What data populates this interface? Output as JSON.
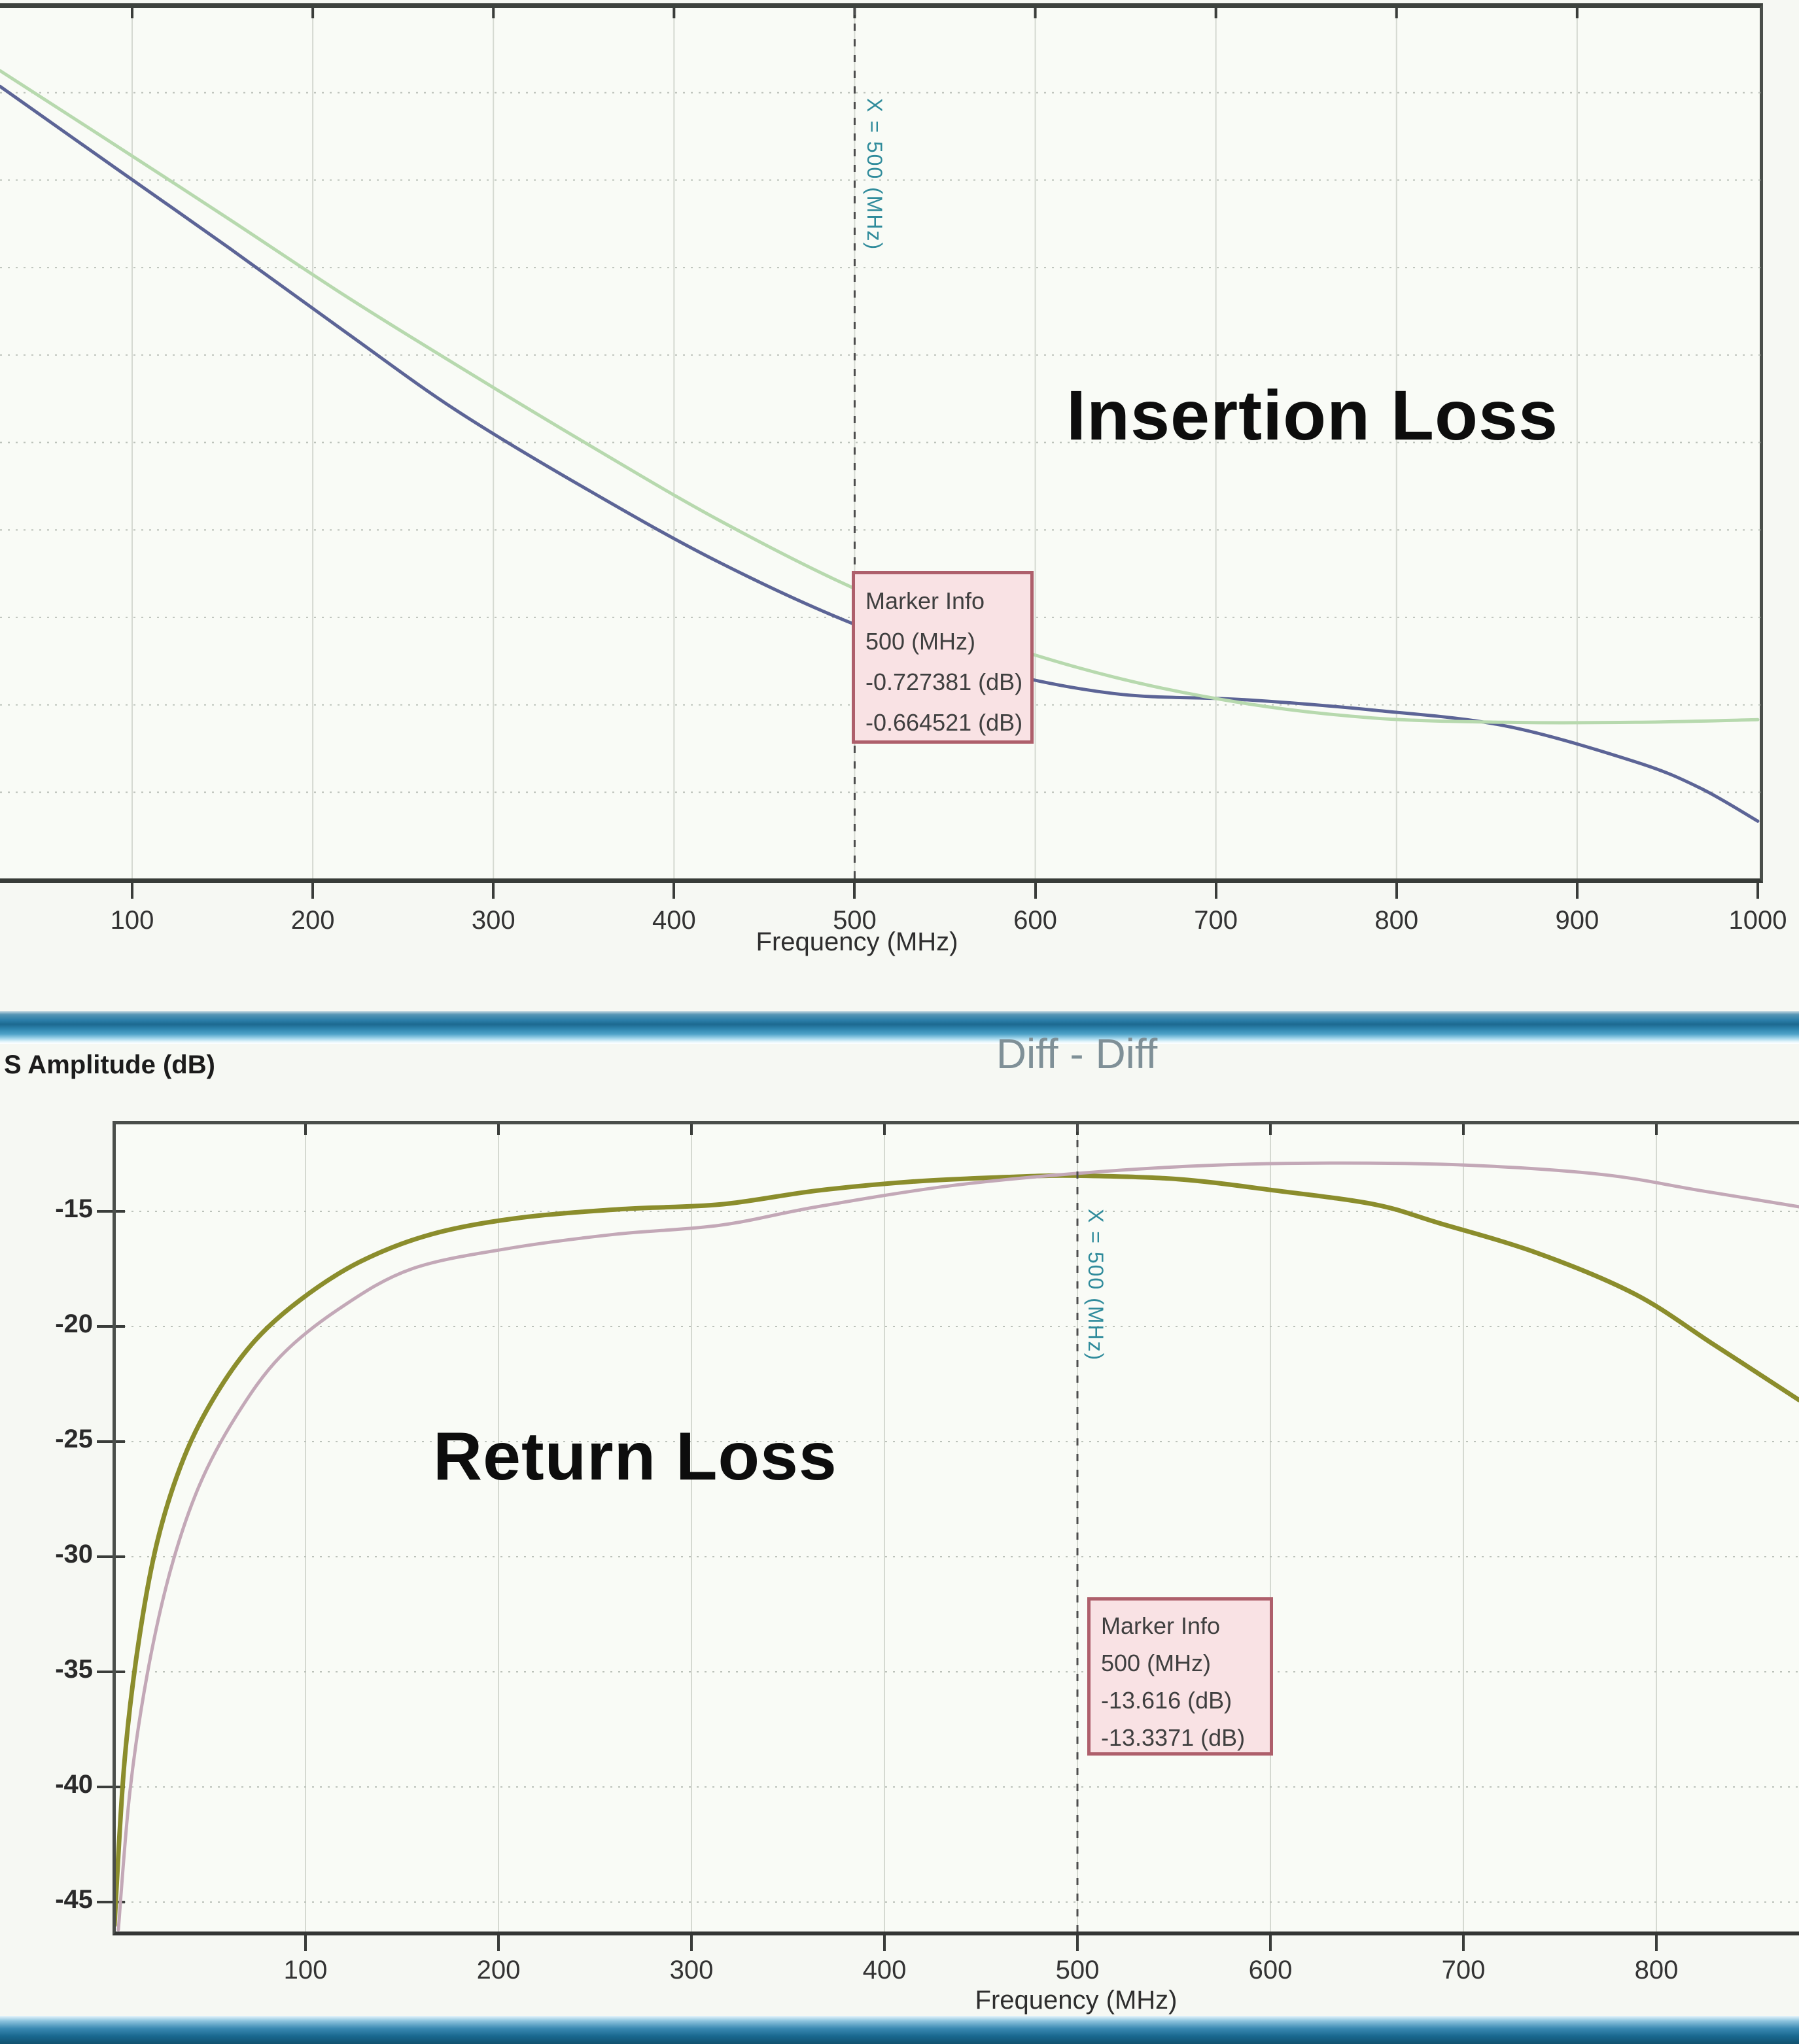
{
  "insertion_chart": {
    "title": "Insertion Loss",
    "xlabel": "Frequency (MHz)",
    "x_ticks": [
      100,
      200,
      300,
      400,
      500,
      600,
      700,
      800,
      900,
      1000
    ],
    "marker_line_label": "X = 500 (MHz)",
    "marker_box": {
      "lines": [
        "Marker Info",
        "500 (MHz)",
        "-0.727381 (dB)",
        "-0.664521 (dB)"
      ]
    }
  },
  "return_chart": {
    "title": "Return Loss",
    "subtitle": "Diff - Diff",
    "ylabel": "S Amplitude (dB)",
    "xlabel": "Frequency (MHz)",
    "x_ticks": [
      100,
      200,
      300,
      400,
      500,
      600,
      700,
      800
    ],
    "y_ticks": [
      -15,
      -20,
      -25,
      -30,
      -35,
      -40,
      -45
    ],
    "marker_line_label": "X = 500 (MHz)",
    "marker_box": {
      "lines": [
        "Marker Info",
        "500 (MHz)",
        "-13.616 (dB)",
        "-13.3371 (dB)"
      ]
    }
  },
  "colors": {
    "page_bg": "#f6f8f3",
    "insertion_trace_dark_blue": "#5c6496",
    "insertion_trace_light_green": "#b7d9ae",
    "return_trace_olive": "#8b8d2c",
    "return_trace_pink": "#c3a8b7",
    "marker_box_bg": "#f9e2e4",
    "marker_box_border": "#ae5f6b",
    "marker_label_teal": "#2f8b9b",
    "grid_vertical": "#d5d9d1",
    "grid_horizontal_dashed": "#bcc2ba",
    "marker_dash_line": "#4d4d4d",
    "strip_blue_mid": "#2a7da8"
  },
  "chart_data": [
    {
      "type": "line",
      "title": "Insertion Loss",
      "xlabel": "Frequency (MHz)",
      "xlim": [
        0,
        1000
      ],
      "x_ticks": [
        100,
        200,
        300,
        400,
        500,
        600,
        700,
        800,
        900,
        1000
      ],
      "ylim_inferred": [
        -1.0,
        0.0
      ],
      "y_axis_note": "y-axis labels cropped off left edge; horizontal gridlines every 0.1 dB",
      "grid": true,
      "legend": "none",
      "marker": {
        "x_mhz": 500,
        "values_db": [
          -0.727381,
          -0.664521
        ],
        "box_lines": [
          "Marker Info",
          "500 (MHz)",
          "-0.727381 (dB)",
          "-0.664521 (dB)"
        ]
      },
      "series": [
        {
          "name": "insertion-loss-trace-1-dark-blue",
          "color": "#5c6496",
          "points_mhz_db": [
            [
              27,
              -0.093
            ],
            [
              90,
              -0.185
            ],
            [
              154,
              -0.278
            ],
            [
              217,
              -0.372
            ],
            [
              280,
              -0.464
            ],
            [
              353,
              -0.555
            ],
            [
              425,
              -0.637
            ],
            [
              500,
              -0.708
            ],
            [
              570,
              -0.757
            ],
            [
              643,
              -0.787
            ],
            [
              715,
              -0.794
            ],
            [
              787,
              -0.806
            ],
            [
              860,
              -0.824
            ],
            [
              932,
              -0.865
            ],
            [
              968,
              -0.895
            ],
            [
              1000,
              -0.933
            ]
          ]
        },
        {
          "name": "insertion-loss-trace-2-light-green",
          "color": "#b7d9ae",
          "points_mhz_db": [
            [
              27,
              -0.075
            ],
            [
              90,
              -0.159
            ],
            [
              154,
              -0.245
            ],
            [
              217,
              -0.331
            ],
            [
              280,
              -0.412
            ],
            [
              353,
              -0.503
            ],
            [
              425,
              -0.589
            ],
            [
              500,
              -0.667
            ],
            [
              570,
              -0.723
            ],
            [
              643,
              -0.768
            ],
            [
              715,
              -0.798
            ],
            [
              787,
              -0.815
            ],
            [
              860,
              -0.82
            ],
            [
              932,
              -0.82
            ],
            [
              1000,
              -0.817
            ]
          ]
        }
      ]
    },
    {
      "type": "line",
      "title": "Return Loss",
      "subtitle": "Diff - Diff",
      "xlabel": "Frequency (MHz)",
      "ylabel": "S Amplitude (dB)",
      "xlim_visible": [
        0,
        874
      ],
      "x_ticks": [
        100,
        200,
        300,
        400,
        500,
        600,
        700,
        800
      ],
      "ylim_visible": [
        -46.6,
        -11.0
      ],
      "y_ticks": [
        -15,
        -20,
        -25,
        -30,
        -35,
        -40,
        -45
      ],
      "grid": true,
      "legend": "none",
      "marker": {
        "x_mhz": 500,
        "values_db": [
          -13.616,
          -13.3371
        ],
        "box_lines": [
          "Marker Info",
          "500 (MHz)",
          "-13.616 (dB)",
          "-13.3371 (dB)"
        ]
      },
      "series": [
        {
          "name": "return-loss-trace-1-olive",
          "color": "#8b8d2c",
          "points_mhz_db": [
            [
              1,
              -46.0
            ],
            [
              6,
              -39.1
            ],
            [
              13,
              -34.0
            ],
            [
              23,
              -29.4
            ],
            [
              37,
              -25.7
            ],
            [
              54,
              -22.9
            ],
            [
              74,
              -20.6
            ],
            [
              98,
              -18.8
            ],
            [
              128,
              -17.2
            ],
            [
              165,
              -16.0
            ],
            [
              209,
              -15.3
            ],
            [
              264,
              -14.9
            ],
            [
              315,
              -14.7
            ],
            [
              365,
              -14.1
            ],
            [
              416,
              -13.7
            ],
            [
              467,
              -13.5
            ],
            [
              500,
              -13.45
            ],
            [
              552,
              -13.6
            ],
            [
              603,
              -14.1
            ],
            [
              654,
              -14.7
            ],
            [
              687,
              -15.5
            ],
            [
              738,
              -16.8
            ],
            [
              789,
              -18.6
            ],
            [
              830,
              -20.8
            ],
            [
              874,
              -23.2
            ]
          ]
        },
        {
          "name": "return-loss-trace-2-pink",
          "color": "#c3a8b7",
          "points_mhz_db": [
            [
              3,
              -46.2
            ],
            [
              9,
              -40.2
            ],
            [
              18,
              -35.1
            ],
            [
              30,
              -30.6
            ],
            [
              45,
              -26.9
            ],
            [
              64,
              -23.9
            ],
            [
              87,
              -21.3
            ],
            [
              118,
              -19.2
            ],
            [
              155,
              -17.5
            ],
            [
              206,
              -16.6
            ],
            [
              260,
              -16.0
            ],
            [
              315,
              -15.6
            ],
            [
              365,
              -14.8
            ],
            [
              433,
              -13.9
            ],
            [
              500,
              -13.35
            ],
            [
              569,
              -13.0
            ],
            [
              637,
              -12.9
            ],
            [
              704,
              -13.0
            ],
            [
              772,
              -13.4
            ],
            [
              823,
              -14.1
            ],
            [
              874,
              -14.8
            ]
          ]
        }
      ]
    }
  ]
}
